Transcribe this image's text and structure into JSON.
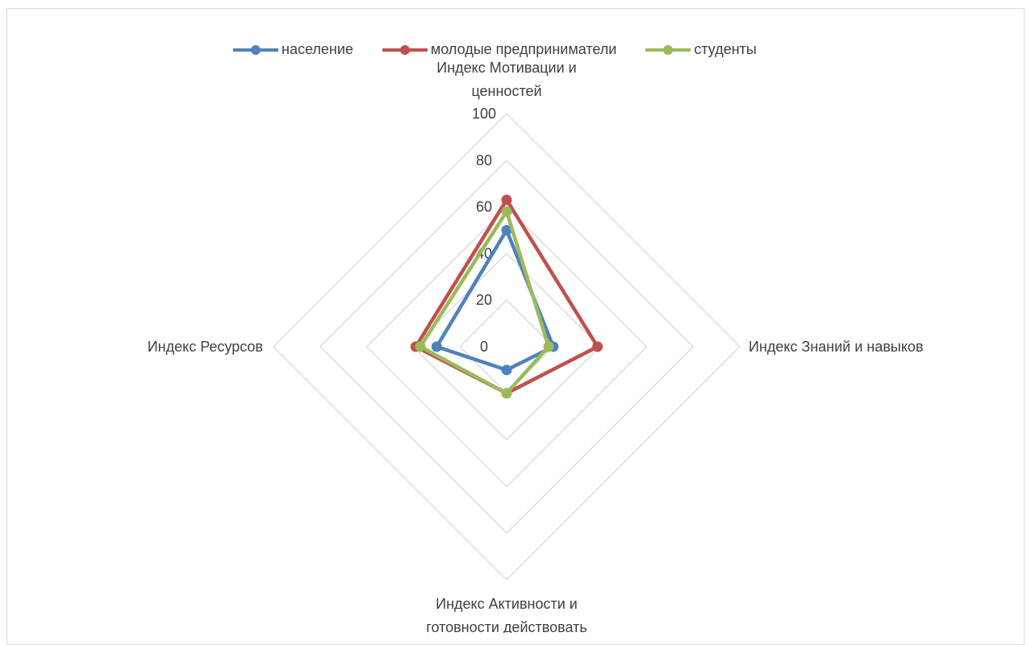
{
  "chart_data": {
    "type": "radar",
    "axes": [
      "Индекс Мотивации и ценностей",
      "Индекс Знаний и навыков",
      "Индекс Активности и готовности действовать",
      "Индекс Ресурсов"
    ],
    "axis_label_lines": [
      [
        "Индекс Мотивации и",
        "ценностей"
      ],
      [
        "Индекс Знаний и навыков"
      ],
      [
        "Индекс Активности и",
        "готовности действовать"
      ],
      [
        "Индекс Ресурсов"
      ]
    ],
    "rlim": [
      0,
      100
    ],
    "ticks": [
      "0",
      "20",
      "40",
      "60",
      "80",
      "100"
    ],
    "grid": true,
    "legend_position": "top",
    "series": [
      {
        "name": "население",
        "color": "#4f81bd",
        "values": [
          50,
          20,
          10,
          30
        ]
      },
      {
        "name": "молодые предприниматели",
        "color": "#c0504d",
        "values": [
          63,
          39,
          20,
          39
        ]
      },
      {
        "name": "студенты",
        "color": "#9bbb59",
        "values": [
          58,
          18,
          20,
          37
        ]
      }
    ]
  }
}
